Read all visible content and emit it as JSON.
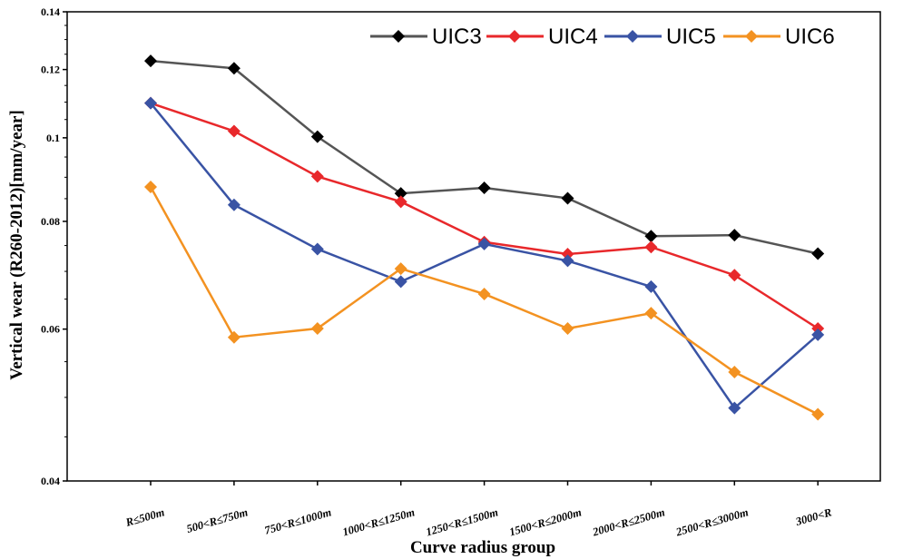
{
  "chart_data": {
    "type": "line",
    "title": "",
    "xlabel": "Curve radius group",
    "ylabel": "Vertical wear (R260-2012)[mm/year]",
    "yscale": "log",
    "ylim": [
      0.04,
      0.14
    ],
    "yticks": [
      0.04,
      0.06,
      0.08,
      0.1,
      0.12,
      0.14
    ],
    "ytick_labels": [
      "0.04",
      "0.06",
      "0.08",
      "0.1",
      "0.12",
      "0.14"
    ],
    "categories": [
      "R≤500m",
      "500<R≤750m",
      "750<R≤1000m",
      "1000<R≤1250m",
      "1250<R≤1500m",
      "1500<R≤2000m",
      "2000<R≤2500m",
      "2500<R≤3000m",
      "3000<R"
    ],
    "grid": false,
    "legend_position": "top-right",
    "series": [
      {
        "name": "UIC3",
        "color": "#000000",
        "line_color": "#555555",
        "marker": "diamond",
        "values": [
          0.1228,
          0.1204,
          0.1003,
          0.0862,
          0.0875,
          0.0851,
          0.0769,
          0.0771,
          0.0734
        ]
      },
      {
        "name": "UIC4",
        "color": "#e8282b",
        "line_color": "#e8282b",
        "marker": "diamond",
        "values": [
          0.1097,
          0.1018,
          0.0902,
          0.0843,
          0.0757,
          0.0733,
          0.0747,
          0.0693,
          0.0601
        ]
      },
      {
        "name": "UIC5",
        "color": "#3953a4",
        "line_color": "#3953a4",
        "marker": "diamond",
        "values": [
          0.1097,
          0.0836,
          0.0743,
          0.0681,
          0.0753,
          0.072,
          0.0672,
          0.0486,
          0.0591
        ]
      },
      {
        "name": "UIC6",
        "color": "#f39221",
        "line_color": "#f39221",
        "marker": "diamond",
        "values": [
          0.0877,
          0.0587,
          0.0601,
          0.0705,
          0.0659,
          0.0601,
          0.0626,
          0.0535,
          0.0478
        ]
      }
    ]
  }
}
